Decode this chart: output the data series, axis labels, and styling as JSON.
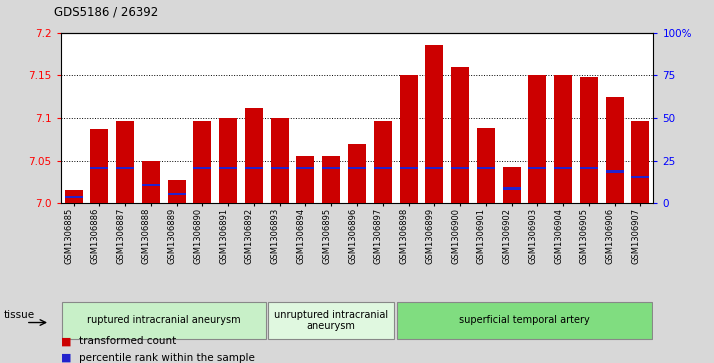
{
  "title": "GDS5186 / 26392",
  "samples": [
    "GSM1306885",
    "GSM1306886",
    "GSM1306887",
    "GSM1306888",
    "GSM1306889",
    "GSM1306890",
    "GSM1306891",
    "GSM1306892",
    "GSM1306893",
    "GSM1306894",
    "GSM1306895",
    "GSM1306896",
    "GSM1306897",
    "GSM1306898",
    "GSM1306899",
    "GSM1306900",
    "GSM1306901",
    "GSM1306902",
    "GSM1306903",
    "GSM1306904",
    "GSM1306905",
    "GSM1306906",
    "GSM1306907"
  ],
  "transformed_count": [
    7.015,
    7.087,
    7.097,
    7.05,
    7.027,
    7.097,
    7.1,
    7.112,
    7.1,
    7.055,
    7.055,
    7.07,
    7.097,
    7.15,
    7.185,
    7.16,
    7.088,
    7.043,
    7.15,
    7.15,
    7.148,
    7.125,
    7.097
  ],
  "percentile_rank": [
    3,
    20,
    20,
    10,
    5,
    20,
    20,
    20,
    20,
    20,
    20,
    20,
    20,
    20,
    20,
    20,
    20,
    8,
    20,
    20,
    20,
    18,
    15
  ],
  "groups": [
    {
      "label": "ruptured intracranial aneurysm",
      "start": 0,
      "end": 8,
      "color": "#c8f0c8"
    },
    {
      "label": "unruptured intracranial\naneurysm",
      "start": 8,
      "end": 13,
      "color": "#e0f8e0"
    },
    {
      "label": "superficial temporal artery",
      "start": 13,
      "end": 23,
      "color": "#80dd80"
    }
  ],
  "ylim_left": [
    7.0,
    7.2
  ],
  "ylim_right": [
    0,
    100
  ],
  "yticks_left": [
    7.0,
    7.05,
    7.1,
    7.15,
    7.2
  ],
  "yticks_right": [
    0,
    25,
    50,
    75,
    100
  ],
  "ytick_labels_right": [
    "0",
    "25",
    "50",
    "75",
    "100%"
  ],
  "bar_color": "#cc0000",
  "percentile_color": "#2222cc",
  "background_color": "#d8d8d8",
  "plot_bg_color": "#ffffff",
  "tick_label_bg": "#d8d8d8"
}
